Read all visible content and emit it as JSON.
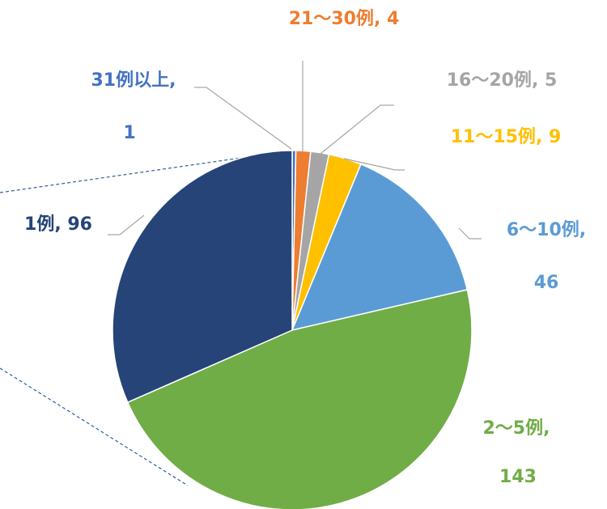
{
  "chart_data": {
    "type": "pie",
    "categories": [
      "31例以上",
      "21～30例",
      "16～20例",
      "11～15例",
      "6～10例",
      "2～5例",
      "1例"
    ],
    "values": [
      1,
      4,
      5,
      9,
      46,
      143,
      96
    ],
    "colors": [
      "#4472c4",
      "#ed7d31",
      "#a5a5a5",
      "#ffc000",
      "#5b9bd5",
      "#70ad47",
      "#264478"
    ],
    "label_separator": ", "
  }
}
